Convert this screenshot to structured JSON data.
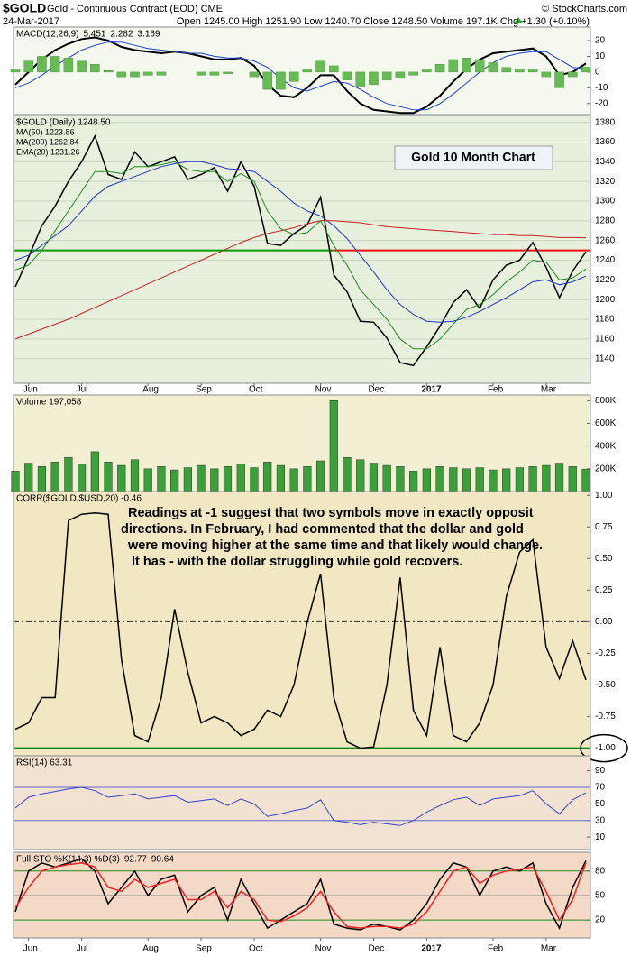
{
  "header": {
    "symbol": "$GOLD",
    "name": "Gold - Continuous Contract (EOD) CME",
    "copyright": "© StockCharts.com",
    "date": "24-Mar-2017",
    "quote": "Open 1245.00 High 1251.90 Low 1240.70 Close 1248.50 Volume 197.1K Chg +1.30 (+0.10%)"
  },
  "chart_data": [
    {
      "type": "line",
      "title": "MACD(12,26,9)",
      "background": "#f4f8ee",
      "ylim": [
        -27,
        28.6
      ],
      "yticks": [
        20,
        10,
        0,
        -10,
        -20
      ],
      "series": [
        {
          "name": "5.451",
          "color": "#000000",
          "width": 2,
          "values": [
            -8,
            0,
            8,
            14,
            18,
            21,
            22,
            20,
            16,
            14,
            13,
            12,
            13,
            12,
            10,
            8,
            8,
            9,
            4,
            -8,
            -15,
            -16,
            -10,
            -2,
            -2,
            -12,
            -20,
            -24,
            -25,
            -26,
            -26,
            -22,
            -15,
            -6,
            2,
            8,
            12,
            13,
            14,
            15,
            10,
            -2,
            0,
            5.451
          ]
        },
        {
          "name": "2.282",
          "color": "#1f3fd0",
          "width": 1,
          "values": [
            -10,
            -7,
            -2,
            4,
            9,
            14,
            17,
            19,
            19,
            17,
            15,
            14,
            13,
            12,
            12,
            10,
            9,
            9,
            7,
            3,
            -4,
            -10,
            -12,
            -9,
            -6,
            -7,
            -11,
            -16,
            -20,
            -22,
            -24,
            -24,
            -20,
            -14,
            -7,
            0,
            6,
            10,
            12,
            13,
            13,
            8,
            3,
            2.282
          ]
        },
        {
          "name": "3.169",
          "color": "#66bb55",
          "style": "histogram",
          "values": [
            2,
            7,
            10,
            10,
            9,
            7,
            5,
            1,
            -3,
            -3,
            -2,
            -2,
            0,
            0,
            -2,
            -2,
            -1,
            0,
            -3,
            -11,
            -11,
            -6,
            2,
            7,
            4,
            -5,
            -9,
            -8,
            -5,
            -4,
            -2,
            2,
            5,
            8,
            9,
            8,
            6,
            3,
            2,
            2,
            -3,
            -10,
            -3,
            3.169
          ]
        }
      ]
    },
    {
      "type": "line",
      "title": "Gold 10 Month Chart",
      "background": "#e6f0dc",
      "categories": [
        null,
        "Jun",
        null,
        null,
        null,
        "Jul",
        null,
        null,
        null,
        null,
        "Aug",
        null,
        null,
        null,
        "Sep",
        null,
        null,
        null,
        "Oct",
        null,
        null,
        null,
        null,
        "Nov",
        null,
        null,
        null,
        "Dec",
        null,
        null,
        null,
        "2017",
        null,
        null,
        null,
        null,
        "Feb",
        null,
        null,
        null,
        "Mar",
        null,
        null,
        null
      ],
      "ylim": [
        1115,
        1387
      ],
      "yticks": [
        1140,
        1160,
        1180,
        1200,
        1220,
        1240,
        1260,
        1280,
        1300,
        1320,
        1340,
        1360,
        1380
      ],
      "grid": true,
      "levels": [
        {
          "value": 1250,
          "colors": [
            "#009900",
            "#ee1111"
          ]
        }
      ],
      "series": [
        {
          "name": "$GOLD (Daily) 1248.50",
          "color": "#000000",
          "width": 1.5,
          "values": [
            1213,
            1243,
            1275,
            1295,
            1320,
            1340,
            1366,
            1327,
            1322,
            1350,
            1335,
            1340,
            1345,
            1322,
            1327,
            1334,
            1310,
            1340,
            1315,
            1257,
            1255,
            1267,
            1276,
            1304,
            1225,
            1208,
            1178,
            1177,
            1161,
            1136,
            1133,
            1152,
            1173,
            1197,
            1210,
            1191,
            1220,
            1235,
            1240,
            1258,
            1233,
            1202,
            1229,
            1248.5
          ]
        },
        {
          "name": "MA(50) 1223.86",
          "color": "#2233cc",
          "width": 1,
          "values": [
            1240,
            1245,
            1255,
            1265,
            1275,
            1290,
            1305,
            1315,
            1320,
            1325,
            1330,
            1335,
            1338,
            1340,
            1340,
            1337,
            1333,
            1332,
            1330,
            1320,
            1310,
            1298,
            1290,
            1285,
            1275,
            1262,
            1245,
            1228,
            1210,
            1195,
            1185,
            1178,
            1177,
            1178,
            1182,
            1188,
            1195,
            1202,
            1210,
            1218,
            1220,
            1215,
            1218,
            1223.86
          ]
        },
        {
          "name": "MA(200) 1262.84",
          "color": "#cc2222",
          "width": 1,
          "values": [
            1160,
            1165,
            1170,
            1175,
            1180,
            1186,
            1192,
            1198,
            1204,
            1210,
            1216,
            1222,
            1228,
            1234,
            1240,
            1246,
            1252,
            1258,
            1263,
            1267,
            1270,
            1273,
            1277,
            1280,
            1280,
            1279,
            1278,
            1276,
            1274,
            1273,
            1272,
            1271,
            1270,
            1269,
            1268,
            1267,
            1266,
            1266,
            1265,
            1265,
            1264,
            1263,
            1263,
            1262.84
          ]
        },
        {
          "name": "EMA(20) 1231.26",
          "color": "#228822",
          "width": 1,
          "values": [
            1230,
            1235,
            1250,
            1270,
            1290,
            1310,
            1330,
            1330,
            1328,
            1335,
            1335,
            1337,
            1340,
            1332,
            1330,
            1330,
            1320,
            1328,
            1320,
            1290,
            1272,
            1266,
            1268,
            1280,
            1255,
            1235,
            1210,
            1195,
            1180,
            1160,
            1150,
            1150,
            1160,
            1175,
            1190,
            1195,
            1205,
            1218,
            1228,
            1240,
            1238,
            1220,
            1222,
            1231.26
          ]
        }
      ]
    },
    {
      "type": "bar",
      "title": "Volume 197,058",
      "background": "#f3efd2",
      "color": "#3aa03a",
      "ylim": [
        0,
        850000
      ],
      "yticks": [
        {
          "value": 200000,
          "label": "200K"
        },
        {
          "value": 400000,
          "label": "400K"
        },
        {
          "value": 600000,
          "label": "600K"
        },
        {
          "value": 800000,
          "label": "800K"
        }
      ],
      "values": [
        180000,
        250000,
        220000,
        260000,
        300000,
        240000,
        350000,
        260000,
        230000,
        280000,
        200000,
        220000,
        190000,
        210000,
        230000,
        200000,
        220000,
        240000,
        210000,
        260000,
        230000,
        200000,
        220000,
        270000,
        800000,
        300000,
        280000,
        250000,
        230000,
        220000,
        180000,
        200000,
        220000,
        210000,
        200000,
        210000,
        190000,
        200000,
        210000,
        220000,
        230000,
        250000,
        220000,
        197058
      ]
    },
    {
      "type": "line",
      "title": "CORR($GOLD,$USD,20) -0.46",
      "background": "#f1e7c2",
      "ylim": [
        -1.06,
        1.03
      ],
      "yticks": [
        {
          "value": 1,
          "label": "1.00"
        },
        {
          "value": 0.75,
          "label": "0.75"
        },
        {
          "value": 0.5,
          "label": "0.50"
        },
        {
          "value": 0.25,
          "label": "0.25"
        },
        {
          "value": 0,
          "label": "0.00"
        },
        {
          "value": -0.25,
          "label": "-0.25"
        },
        {
          "value": -0.5,
          "label": "-0.50"
        },
        {
          "value": -0.75,
          "label": "-0.75"
        },
        {
          "value": -1,
          "label": "-1.00"
        }
      ],
      "levels": [
        {
          "value": 0,
          "color": "#333333",
          "dash": true
        },
        {
          "value": -1,
          "color": "#118811",
          "width": 2
        }
      ],
      "annotation_lines": [
        "Readings at -1 suggest that two symbols move in exactly opposit",
        "directions.   In February, I had commented that the dollar and gold",
        "were moving higher at the same time and that likely would change.",
        "It has - with the dollar struggling while gold recovers."
      ],
      "series": [
        {
          "color": "#000000",
          "width": 1.5,
          "values": [
            -0.85,
            -0.8,
            -0.6,
            -0.6,
            0.8,
            0.85,
            0.86,
            0.85,
            -0.3,
            -0.9,
            -0.95,
            -0.6,
            0.1,
            -0.4,
            -0.8,
            -0.75,
            -0.8,
            -0.9,
            -0.85,
            -0.7,
            -0.75,
            -0.5,
            0.0,
            0.38,
            -0.6,
            -0.95,
            -1,
            -0.99,
            -0.5,
            0.35,
            -0.7,
            -0.9,
            -0.2,
            -0.9,
            -0.95,
            -0.8,
            -0.5,
            0.2,
            0.55,
            0.65,
            -0.2,
            -0.45,
            -0.15,
            -0.46
          ]
        }
      ]
    },
    {
      "type": "line",
      "title": "RSI(14) 63.31",
      "background": "#f2e2d2",
      "ylim": [
        -5,
        108
      ],
      "yticks": [
        10,
        30,
        50,
        70,
        90
      ],
      "levels": [
        {
          "value": 70,
          "color": "#6666cc"
        },
        {
          "value": 30,
          "color": "#6666cc"
        }
      ],
      "series": [
        {
          "color": "#3344cc",
          "width": 1,
          "values": [
            45,
            58,
            62,
            65,
            68,
            70,
            66,
            58,
            60,
            62,
            56,
            58,
            60,
            52,
            54,
            56,
            48,
            56,
            50,
            35,
            38,
            42,
            45,
            55,
            30,
            28,
            25,
            28,
            26,
            24,
            30,
            40,
            48,
            55,
            58,
            48,
            56,
            58,
            60,
            66,
            50,
            38,
            55,
            63.31
          ]
        }
      ]
    },
    {
      "type": "line",
      "title": "Full STO %K(14,3) %D(3)",
      "background": "#f3d9c6",
      "categories": [
        null,
        "Jun",
        null,
        null,
        null,
        "Jul",
        null,
        null,
        null,
        null,
        "Aug",
        null,
        null,
        null,
        "Sep",
        null,
        null,
        null,
        "Oct",
        null,
        null,
        null,
        null,
        "Nov",
        null,
        null,
        null,
        "Dec",
        null,
        null,
        null,
        "2017",
        null,
        null,
        null,
        null,
        "Feb",
        null,
        null,
        null,
        "Mar",
        null,
        null,
        null
      ],
      "ylim": [
        -2,
        103
      ],
      "yticks": [
        20,
        50,
        80
      ],
      "levels": [
        {
          "value": 80,
          "color": "#228822"
        },
        {
          "value": 50,
          "color": "#888888"
        },
        {
          "value": 20,
          "color": "#228822"
        }
      ],
      "series": [
        {
          "name": "92.77",
          "color": "#000000",
          "width": 1.5,
          "values": [
            30,
            80,
            90,
            85,
            90,
            95,
            80,
            40,
            60,
            80,
            50,
            70,
            75,
            30,
            50,
            60,
            20,
            70,
            40,
            10,
            20,
            30,
            40,
            70,
            15,
            10,
            8,
            15,
            12,
            8,
            20,
            40,
            70,
            90,
            85,
            50,
            80,
            85,
            80,
            90,
            40,
            10,
            60,
            92.77
          ]
        },
        {
          "name": "90.64",
          "color": "#ee2222",
          "width": 1.5,
          "values": [
            35,
            60,
            80,
            85,
            88,
            90,
            85,
            60,
            55,
            70,
            60,
            65,
            70,
            45,
            45,
            55,
            35,
            55,
            45,
            20,
            18,
            25,
            35,
            55,
            30,
            12,
            10,
            12,
            12,
            10,
            15,
            30,
            55,
            80,
            85,
            65,
            75,
            80,
            82,
            85,
            55,
            20,
            45,
            90.64
          ]
        }
      ]
    }
  ]
}
